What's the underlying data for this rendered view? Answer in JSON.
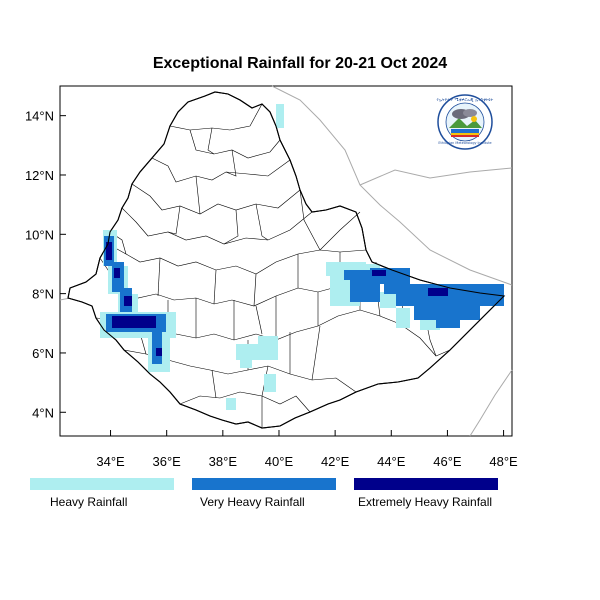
{
  "title": "Exceptional Rainfall for 20-21 Oct 2024",
  "axes": {
    "x_ticks": [
      34,
      36,
      38,
      40,
      42,
      44,
      46,
      48
    ],
    "x_tick_labels": [
      "34°E",
      "36°E",
      "38°E",
      "40°E",
      "42°E",
      "44°E",
      "46°E",
      "48°E"
    ],
    "y_ticks": [
      4,
      6,
      8,
      10,
      12,
      14
    ],
    "y_tick_labels": [
      "4°N",
      "6°N",
      "8°N",
      "10°N",
      "12°N",
      "14°N"
    ],
    "lon_range": [
      32.2,
      48.3
    ],
    "lat_range": [
      3.2,
      15.0
    ]
  },
  "legend": [
    {
      "label": "Heavy Rainfall",
      "color": "#aeeef0"
    },
    {
      "label": "Very Heavy Rainfall",
      "color": "#1874cd"
    },
    {
      "label": "Extremely Heavy Rainfall",
      "color": "#00008b"
    }
  ],
  "logo": {
    "icon": "meteorology-institute-logo",
    "text_top": "የኢትዮጵያ ሜቲዎሮሎጂ ኢንስቲትዩት",
    "text_bottom": "Ethiopian Meteorology Institute"
  }
}
